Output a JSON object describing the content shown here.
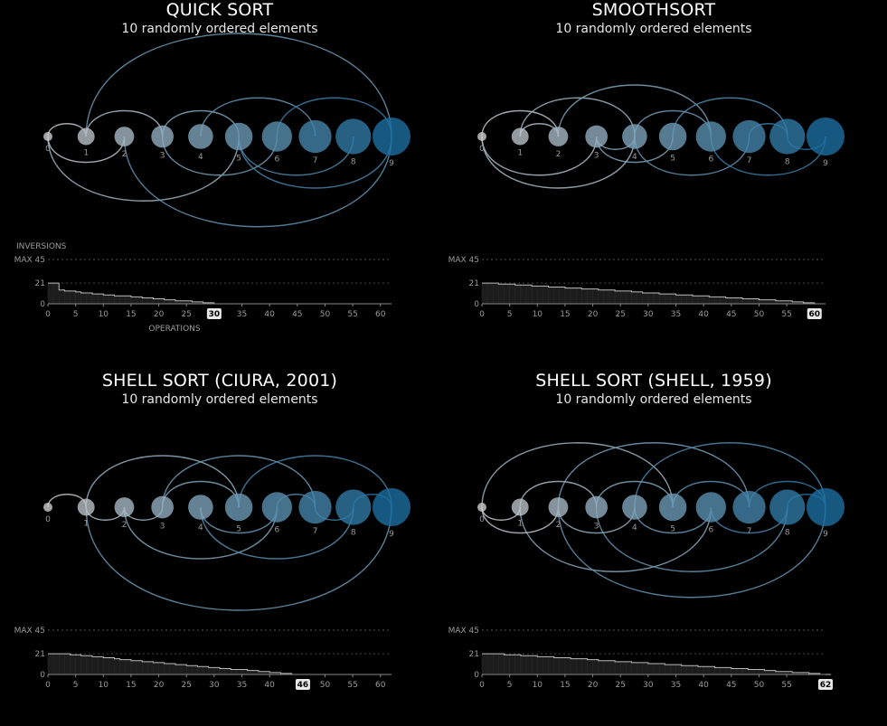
{
  "chart_data": [
    {
      "type": "arc-diagram",
      "title": "QUICK SORT",
      "subtitle": "10 randomly ordered elements",
      "nodes": [
        "0",
        "1",
        "2",
        "3",
        "4",
        "5",
        "6",
        "7",
        "8",
        "9"
      ],
      "arcs": [
        [
          0,
          1
        ],
        [
          0,
          2
        ],
        [
          1,
          3
        ],
        [
          0,
          5
        ],
        [
          3,
          5
        ],
        [
          3,
          6
        ],
        [
          4,
          7
        ],
        [
          5,
          8
        ],
        [
          1,
          9
        ],
        [
          2,
          9
        ],
        [
          6,
          9
        ],
        [
          5,
          9
        ]
      ],
      "inversions_label": "INVERSIONS",
      "max_label": "MAX 45",
      "max_value": 45,
      "y_ticks": [
        0,
        21
      ],
      "xlabel": "OPERATIONS",
      "x_ticks": [
        0,
        5,
        10,
        15,
        20,
        25,
        30,
        35,
        40,
        45,
        50,
        55,
        60
      ],
      "x_max": 62,
      "operations": 30,
      "operations_label": "30",
      "inversions": [
        21,
        21,
        14,
        13,
        13,
        12,
        11,
        11,
        10,
        10,
        9,
        9,
        8,
        8,
        8,
        7,
        7,
        6,
        6,
        5,
        5,
        4,
        4,
        3,
        3,
        3,
        2,
        2,
        1,
        1,
        0
      ]
    },
    {
      "type": "arc-diagram",
      "title": "SMOOTHSORT",
      "subtitle": "10 randomly ordered elements",
      "nodes": [
        "0",
        "1",
        "2",
        "3",
        "4",
        "5",
        "6",
        "7",
        "8",
        "9"
      ],
      "arcs": [
        [
          0,
          2
        ],
        [
          0,
          3
        ],
        [
          1,
          4
        ],
        [
          3,
          5
        ],
        [
          2,
          6
        ],
        [
          4,
          7
        ],
        [
          5,
          8
        ],
        [
          6,
          9
        ],
        [
          1,
          2
        ],
        [
          3,
          4
        ],
        [
          7,
          8
        ],
        [
          8,
          9
        ],
        [
          4,
          6
        ],
        [
          0,
          4
        ]
      ],
      "inversions_label": "",
      "max_label": "MAX 45",
      "max_value": 45,
      "y_ticks": [
        0,
        21
      ],
      "xlabel": "",
      "x_ticks": [
        0,
        5,
        10,
        15,
        20,
        25,
        30,
        35,
        40,
        45,
        50,
        55,
        60
      ],
      "x_max": 62,
      "operations": 60,
      "operations_label": "60",
      "inversions": [
        21,
        21,
        21,
        20,
        20,
        20,
        19,
        19,
        19,
        18,
        18,
        18,
        17,
        17,
        17,
        16,
        16,
        16,
        15,
        15,
        15,
        14,
        14,
        14,
        13,
        13,
        13,
        12,
        12,
        11,
        11,
        11,
        10,
        10,
        10,
        9,
        9,
        9,
        8,
        8,
        8,
        7,
        7,
        7,
        6,
        6,
        6,
        5,
        5,
        5,
        4,
        4,
        4,
        3,
        3,
        3,
        2,
        2,
        1,
        1,
        0
      ]
    },
    {
      "type": "arc-diagram",
      "title": "SHELL SORT (CIURA, 2001)",
      "subtitle": "10 randomly ordered elements",
      "nodes": [
        "0",
        "1",
        "2",
        "3",
        "4",
        "5",
        "6",
        "7",
        "8",
        "9"
      ],
      "arcs": [
        [
          0,
          1
        ],
        [
          1,
          2
        ],
        [
          1,
          5
        ],
        [
          2,
          6
        ],
        [
          3,
          7
        ],
        [
          4,
          8
        ],
        [
          5,
          9
        ],
        [
          1,
          9
        ],
        [
          3,
          5
        ],
        [
          4,
          6
        ],
        [
          6,
          7
        ],
        [
          7,
          8
        ],
        [
          8,
          9
        ],
        [
          2,
          3
        ]
      ],
      "inversions_label": "",
      "max_label": "MAX 45",
      "max_value": 45,
      "y_ticks": [
        0,
        21
      ],
      "xlabel": "",
      "x_ticks": [
        0,
        5,
        10,
        15,
        20,
        25,
        30,
        35,
        40,
        45,
        50,
        55,
        60
      ],
      "x_max": 62,
      "operations": 46,
      "operations_label": "46",
      "inversions": [
        21,
        21,
        21,
        21,
        20,
        20,
        19,
        19,
        18,
        18,
        17,
        17,
        16,
        15,
        15,
        14,
        14,
        13,
        13,
        12,
        12,
        11,
        11,
        10,
        10,
        9,
        9,
        8,
        8,
        7,
        7,
        6,
        6,
        5,
        5,
        5,
        4,
        4,
        3,
        3,
        2,
        2,
        1,
        1,
        0,
        0,
        0
      ]
    },
    {
      "type": "arc-diagram",
      "title": "SHELL SORT (SHELL, 1959)",
      "subtitle": "10 randomly ordered elements",
      "nodes": [
        "0",
        "1",
        "2",
        "3",
        "4",
        "5",
        "6",
        "7",
        "8",
        "9"
      ],
      "arcs": [
        [
          0,
          5
        ],
        [
          1,
          6
        ],
        [
          2,
          7
        ],
        [
          3,
          8
        ],
        [
          4,
          9
        ],
        [
          0,
          2
        ],
        [
          1,
          3
        ],
        [
          2,
          4
        ],
        [
          3,
          5
        ],
        [
          4,
          6
        ],
        [
          5,
          7
        ],
        [
          6,
          8
        ],
        [
          7,
          9
        ],
        [
          0,
          1
        ],
        [
          8,
          9
        ],
        [
          2,
          9
        ]
      ],
      "inversions_label": "",
      "max_label": "MAX 45",
      "max_value": 45,
      "y_ticks": [
        0,
        21
      ],
      "xlabel": "",
      "x_ticks": [
        0,
        5,
        10,
        15,
        20,
        25,
        30,
        35,
        40,
        45,
        50,
        55,
        60
      ],
      "x_max": 62,
      "operations": 62,
      "operations_label": "62",
      "inversions": [
        21,
        21,
        21,
        21,
        20,
        20,
        20,
        19,
        19,
        19,
        18,
        18,
        18,
        17,
        17,
        17,
        16,
        16,
        16,
        15,
        15,
        14,
        14,
        14,
        13,
        13,
        13,
        12,
        12,
        12,
        11,
        11,
        11,
        10,
        10,
        10,
        9,
        9,
        9,
        8,
        8,
        8,
        7,
        7,
        7,
        6,
        6,
        6,
        5,
        5,
        5,
        4,
        4,
        3,
        3,
        3,
        2,
        2,
        2,
        1,
        1,
        0,
        0
      ]
    }
  ]
}
